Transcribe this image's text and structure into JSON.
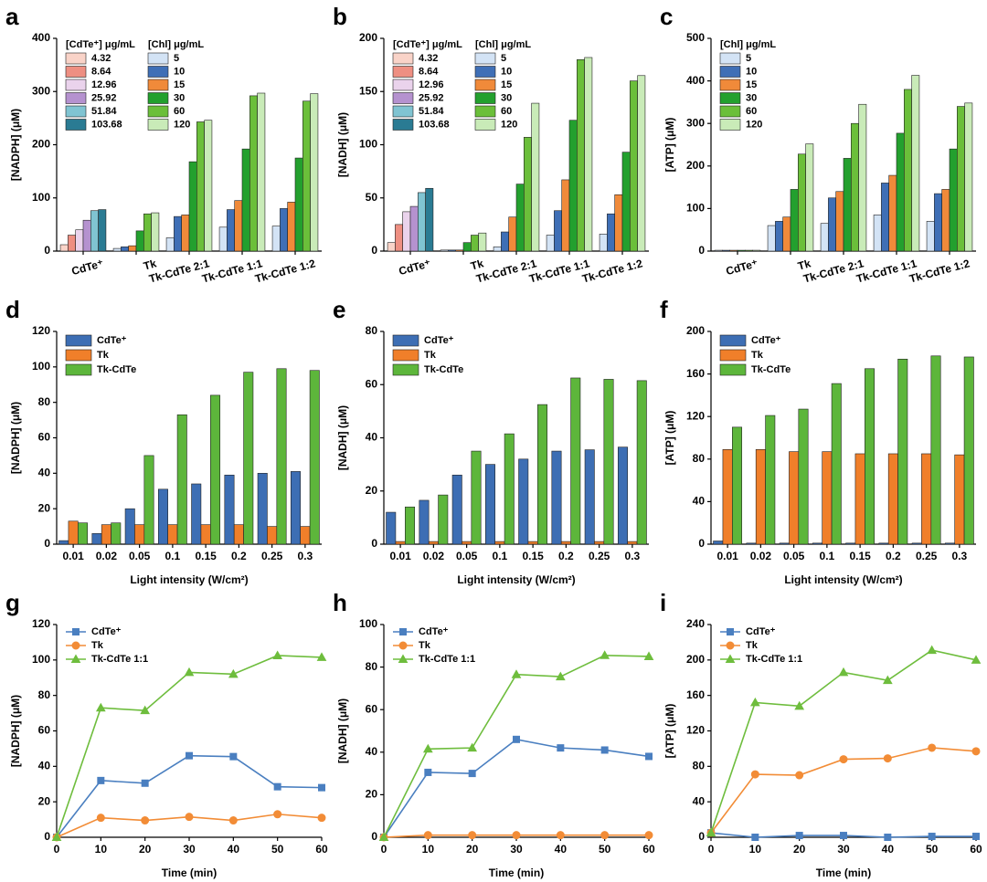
{
  "chart_data": [
    {
      "type": "bar",
      "label": "a",
      "ylabel": "[NADPH] (μM)",
      "ylim": [
        0,
        400
      ],
      "yticks": [
        0,
        100,
        200,
        300,
        400
      ],
      "categories": [
        "CdTe⁺",
        "Tk",
        "Tk-CdTe 2:1",
        "Tk-CdTe 1:1",
        "Tk-CdTe 1:2"
      ],
      "legend_groups": [
        {
          "title": "[CdTe⁺] μg/mL",
          "series": [
            {
              "name": "4.32",
              "color": "#f9d3c8",
              "values": [
                12,
                null,
                null,
                null,
                null
              ]
            },
            {
              "name": "8.64",
              "color": "#ee8f82",
              "values": [
                30,
                null,
                null,
                null,
                null
              ]
            },
            {
              "name": "12.96",
              "color": "#ead3ec",
              "values": [
                40,
                null,
                null,
                null,
                null
              ]
            },
            {
              "name": "25.92",
              "color": "#b592cf",
              "values": [
                58,
                null,
                null,
                null,
                null
              ]
            },
            {
              "name": "51.84",
              "color": "#80c4d2",
              "values": [
                76,
                null,
                null,
                null,
                null
              ]
            },
            {
              "name": "103.68",
              "color": "#2a7b93",
              "values": [
                78,
                null,
                null,
                null,
                null
              ]
            }
          ]
        },
        {
          "title": "[Chl] μg/mL",
          "series": [
            {
              "name": "5",
              "color": "#d3e3f5",
              "values": [
                null,
                5,
                25,
                45,
                47
              ]
            },
            {
              "name": "10",
              "color": "#3f6fb6",
              "values": [
                null,
                8,
                65,
                78,
                80
              ]
            },
            {
              "name": "15",
              "color": "#f08a3a",
              "values": [
                null,
                10,
                68,
                95,
                92
              ]
            },
            {
              "name": "30",
              "color": "#23a02e",
              "values": [
                null,
                38,
                168,
                192,
                175
              ]
            },
            {
              "name": "60",
              "color": "#6bbf3a",
              "values": [
                null,
                70,
                243,
                292,
                282
              ]
            },
            {
              "name": "120",
              "color": "#c9ebb8",
              "values": [
                null,
                72,
                246,
                297,
                296
              ]
            }
          ]
        }
      ]
    },
    {
      "type": "bar",
      "label": "b",
      "ylabel": "[NADH] (μM)",
      "ylim": [
        0,
        200
      ],
      "yticks": [
        0,
        50,
        100,
        150,
        200
      ],
      "categories": [
        "CdTe⁺",
        "Tk",
        "Tk-CdTe 2:1",
        "Tk-CdTe 1:1",
        "Tk-CdTe 1:2"
      ],
      "legend_groups": [
        {
          "title": "[CdTe⁺] μg/mL",
          "series": [
            {
              "name": "4.32",
              "color": "#f9d3c8",
              "values": [
                8,
                null,
                null,
                null,
                null
              ]
            },
            {
              "name": "8.64",
              "color": "#ee8f82",
              "values": [
                25,
                null,
                null,
                null,
                null
              ]
            },
            {
              "name": "12.96",
              "color": "#ead3ec",
              "values": [
                37,
                null,
                null,
                null,
                null
              ]
            },
            {
              "name": "25.92",
              "color": "#b592cf",
              "values": [
                42,
                null,
                null,
                null,
                null
              ]
            },
            {
              "name": "51.84",
              "color": "#80c4d2",
              "values": [
                55,
                null,
                null,
                null,
                null
              ]
            },
            {
              "name": "103.68",
              "color": "#2a7b93",
              "values": [
                59,
                null,
                null,
                null,
                null
              ]
            }
          ]
        },
        {
          "title": "[Chl] μg/mL",
          "series": [
            {
              "name": "5",
              "color": "#d3e3f5",
              "values": [
                null,
                1,
                4,
                15,
                16
              ]
            },
            {
              "name": "10",
              "color": "#3f6fb6",
              "values": [
                null,
                1,
                18,
                38,
                35
              ]
            },
            {
              "name": "15",
              "color": "#f08a3a",
              "values": [
                null,
                1,
                32,
                67,
                53
              ]
            },
            {
              "name": "30",
              "color": "#23a02e",
              "values": [
                null,
                8,
                63,
                123,
                93
              ]
            },
            {
              "name": "60",
              "color": "#6bbf3a",
              "values": [
                null,
                15,
                107,
                180,
                160
              ]
            },
            {
              "name": "120",
              "color": "#c9ebb8",
              "values": [
                null,
                17,
                139,
                182,
                165
              ]
            }
          ]
        }
      ]
    },
    {
      "type": "bar",
      "label": "c",
      "ylabel": "[ATP] (μM)",
      "ylim": [
        0,
        500
      ],
      "yticks": [
        0,
        100,
        200,
        300,
        400,
        500
      ],
      "categories": [
        "CdTe⁺",
        "Tk",
        "Tk-CdTe 2:1",
        "Tk-CdTe 1:1",
        "Tk-CdTe 1:2"
      ],
      "legend_groups": [
        {
          "title": "[Chl] μg/mL",
          "series": [
            {
              "name": "5",
              "color": "#d3e3f5",
              "values": [
                2,
                60,
                65,
                85,
                70
              ]
            },
            {
              "name": "10",
              "color": "#3f6fb6",
              "values": [
                2,
                70,
                125,
                160,
                135
              ]
            },
            {
              "name": "15",
              "color": "#f08a3a",
              "values": [
                2,
                80,
                140,
                178,
                145
              ]
            },
            {
              "name": "30",
              "color": "#23a02e",
              "values": [
                2,
                145,
                218,
                277,
                240
              ]
            },
            {
              "name": "60",
              "color": "#6bbf3a",
              "values": [
                2,
                228,
                300,
                380,
                340
              ]
            },
            {
              "name": "120",
              "color": "#c9ebb8",
              "values": [
                2,
                252,
                345,
                413,
                348
              ]
            }
          ]
        }
      ]
    },
    {
      "type": "bar",
      "label": "d",
      "ylabel": "[NADPH] (μM)",
      "xlabel": "Light intensity (W/cm²)",
      "ylim": [
        0,
        120
      ],
      "yticks": [
        0,
        20,
        40,
        60,
        80,
        100,
        120
      ],
      "categories": [
        "0.01",
        "0.02",
        "0.05",
        "0.1",
        "0.15",
        "0.2",
        "0.25",
        "0.3"
      ],
      "series": [
        {
          "name": "CdTe⁺",
          "color": "#3d6eb4",
          "values": [
            2,
            6,
            20,
            31,
            34,
            39,
            40,
            41
          ]
        },
        {
          "name": "Tk",
          "color": "#f07f2a",
          "values": [
            13,
            11,
            11,
            11,
            11,
            11,
            10,
            10
          ]
        },
        {
          "name": "Tk-CdTe",
          "color": "#5db63b",
          "values": [
            12,
            12,
            50,
            73,
            84,
            97,
            99,
            98
          ]
        }
      ]
    },
    {
      "type": "bar",
      "label": "e",
      "ylabel": "[NADH] (μM)",
      "xlabel": "Light intensity (W/cm²)",
      "ylim": [
        0,
        80
      ],
      "yticks": [
        0,
        20,
        40,
        60,
        80
      ],
      "categories": [
        "0.01",
        "0.02",
        "0.05",
        "0.1",
        "0.15",
        "0.2",
        "0.25",
        "0.3"
      ],
      "series": [
        {
          "name": "CdTe⁺",
          "color": "#3d6eb4",
          "values": [
            12,
            16.5,
            26,
            30,
            32,
            35,
            35.5,
            36.5
          ]
        },
        {
          "name": "Tk",
          "color": "#f07f2a",
          "values": [
            1,
            1,
            1,
            1,
            1,
            1,
            1,
            1
          ]
        },
        {
          "name": "Tk-CdTe",
          "color": "#5db63b",
          "values": [
            14,
            18.5,
            35,
            41.5,
            52.5,
            62.5,
            62,
            61.5
          ]
        }
      ]
    },
    {
      "type": "bar",
      "label": "f",
      "ylabel": "[ATP] (μM)",
      "xlabel": "Light intensity (W/cm²)",
      "ylim": [
        0,
        200
      ],
      "yticks": [
        0,
        40,
        80,
        120,
        160,
        200
      ],
      "categories": [
        "0.01",
        "0.02",
        "0.05",
        "0.1",
        "0.15",
        "0.2",
        "0.25",
        "0.3"
      ],
      "series": [
        {
          "name": "CdTe⁺",
          "color": "#3d6eb4",
          "values": [
            3,
            1,
            1,
            1,
            1,
            1,
            1,
            1
          ]
        },
        {
          "name": "Tk",
          "color": "#f07f2a",
          "values": [
            89,
            89,
            87,
            87,
            85,
            85,
            85,
            84
          ]
        },
        {
          "name": "Tk-CdTe",
          "color": "#5db63b",
          "values": [
            110,
            121,
            127,
            151,
            165,
            174,
            177,
            176
          ]
        }
      ]
    },
    {
      "type": "line",
      "label": "g",
      "ylabel": "[NADPH] (μM)",
      "xlabel": "Time (min)",
      "xlim": [
        0,
        60
      ],
      "xticks": [
        0,
        10,
        20,
        30,
        40,
        50,
        60
      ],
      "ylim": [
        0,
        120
      ],
      "yticks": [
        0,
        20,
        40,
        60,
        80,
        100,
        120
      ],
      "x": [
        0,
        10,
        20,
        30,
        40,
        50,
        60
      ],
      "series": [
        {
          "name": "CdTe⁺",
          "color": "#4a7fc0",
          "marker": "square",
          "values": [
            0,
            32,
            30.5,
            46,
            45.5,
            28.5,
            28
          ]
        },
        {
          "name": "Tk",
          "color": "#f28c36",
          "marker": "circle",
          "values": [
            0,
            11,
            9.5,
            11.5,
            9.5,
            13,
            11
          ]
        },
        {
          "name": "Tk-CdTe 1:1",
          "color": "#6ebd3d",
          "marker": "triangle",
          "values": [
            0,
            73,
            71.5,
            93,
            92,
            102.5,
            101.5
          ]
        }
      ]
    },
    {
      "type": "line",
      "label": "h",
      "ylabel": "[NADH] (μM)",
      "xlabel": "Time (min)",
      "xlim": [
        0,
        60
      ],
      "xticks": [
        0,
        10,
        20,
        30,
        40,
        50,
        60
      ],
      "ylim": [
        0,
        100
      ],
      "yticks": [
        0,
        20,
        40,
        60,
        80,
        100
      ],
      "x": [
        0,
        10,
        20,
        30,
        40,
        50,
        60
      ],
      "series": [
        {
          "name": "CdTe⁺",
          "color": "#4a7fc0",
          "marker": "square",
          "values": [
            0,
            30.5,
            30,
            46,
            42,
            41,
            38
          ]
        },
        {
          "name": "Tk",
          "color": "#f28c36",
          "marker": "circle",
          "values": [
            0,
            1,
            1,
            1,
            1,
            1,
            1
          ]
        },
        {
          "name": "Tk-CdTe 1:1",
          "color": "#6ebd3d",
          "marker": "triangle",
          "values": [
            0,
            41.5,
            42,
            76.5,
            75.5,
            85.5,
            85
          ]
        }
      ]
    },
    {
      "type": "line",
      "label": "i",
      "ylabel": "[ATP] (μM)",
      "xlabel": "Time (min)",
      "xlim": [
        0,
        60
      ],
      "xticks": [
        0,
        10,
        20,
        30,
        40,
        50,
        60
      ],
      "ylim": [
        0,
        240
      ],
      "yticks": [
        0,
        40,
        80,
        120,
        160,
        200,
        240
      ],
      "x": [
        0,
        10,
        20,
        30,
        40,
        50,
        60
      ],
      "series": [
        {
          "name": "CdTe⁺",
          "color": "#4a7fc0",
          "marker": "square",
          "values": [
            5,
            0,
            2,
            2,
            0,
            1,
            1
          ]
        },
        {
          "name": "Tk",
          "color": "#f28c36",
          "marker": "circle",
          "values": [
            5,
            71,
            70,
            88,
            89,
            101,
            97
          ]
        },
        {
          "name": "Tk-CdTe 1:1",
          "color": "#6ebd3d",
          "marker": "triangle",
          "values": [
            5,
            152,
            148,
            186,
            177,
            211,
            200
          ]
        }
      ]
    }
  ]
}
